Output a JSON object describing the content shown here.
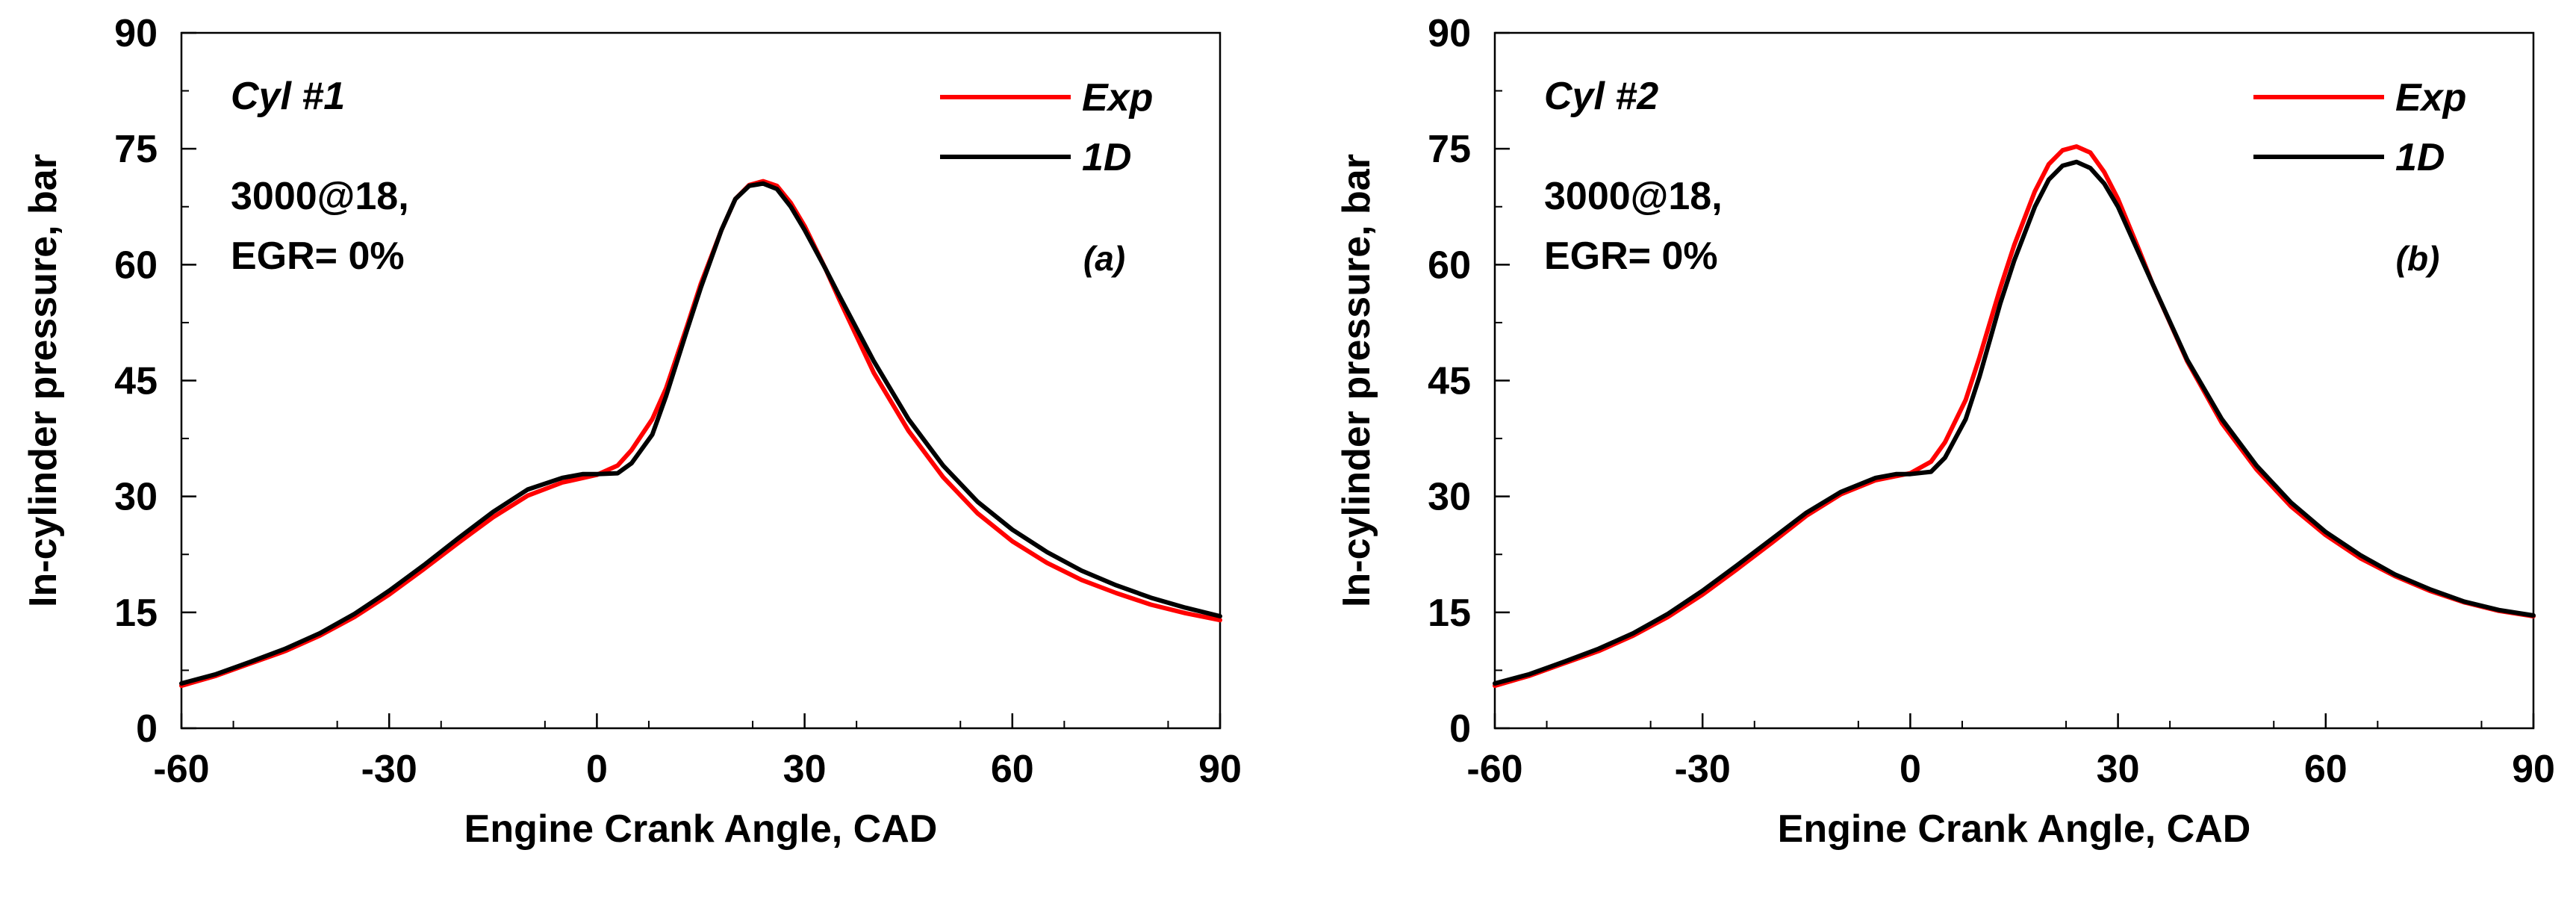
{
  "chart_data": [
    {
      "type": "line",
      "panel_tag": "(a)",
      "title": "Cyl #1",
      "annotation_lines": [
        "3000@18,",
        "EGR= 0%"
      ],
      "xlabel": "Engine Crank Angle, CAD",
      "ylabel": "In-cylinder pressure, bar",
      "xlim": [
        -60,
        90
      ],
      "ylim": [
        0,
        90
      ],
      "xticks": [
        -60,
        -30,
        0,
        30,
        60,
        90
      ],
      "yticks": [
        0,
        15,
        30,
        45,
        60,
        75,
        90
      ],
      "legend_position": "top-right",
      "series": [
        {
          "name": "Exp",
          "color": "#ff0000",
          "x": [
            -60,
            -55,
            -50,
            -45,
            -40,
            -35,
            -30,
            -25,
            -20,
            -15,
            -10,
            -5,
            0,
            3,
            5,
            8,
            10,
            13,
            15,
            18,
            20,
            22,
            24,
            26,
            28,
            30,
            33,
            35,
            40,
            45,
            50,
            55,
            60,
            65,
            70,
            75,
            80,
            85,
            90
          ],
          "y": [
            5.5,
            6.8,
            8.4,
            10.0,
            12.0,
            14.4,
            17.3,
            20.6,
            24.0,
            27.3,
            30.1,
            31.8,
            32.8,
            34.0,
            36.0,
            40.0,
            44.0,
            52.0,
            57.5,
            64.5,
            68.5,
            70.3,
            70.8,
            70.2,
            68.0,
            65.0,
            59.5,
            55.5,
            46.0,
            38.5,
            32.5,
            27.8,
            24.2,
            21.4,
            19.2,
            17.5,
            16.0,
            14.9,
            14.0
          ]
        },
        {
          "name": "1D",
          "color": "#000000",
          "x": [
            -60,
            -55,
            -50,
            -45,
            -40,
            -35,
            -30,
            -25,
            -20,
            -15,
            -10,
            -5,
            -2,
            0,
            3,
            5,
            8,
            10,
            13,
            15,
            18,
            20,
            22,
            24,
            26,
            28,
            30,
            33,
            35,
            40,
            45,
            50,
            55,
            60,
            65,
            70,
            75,
            80,
            85,
            90
          ],
          "y": [
            5.8,
            7.0,
            8.6,
            10.3,
            12.3,
            14.8,
            17.8,
            21.1,
            24.6,
            28.0,
            30.9,
            32.4,
            32.9,
            32.9,
            33.0,
            34.3,
            38.0,
            43.0,
            51.5,
            57.0,
            64.5,
            68.5,
            70.2,
            70.5,
            69.8,
            67.5,
            64.5,
            59.5,
            56.0,
            47.5,
            40.0,
            34.0,
            29.3,
            25.7,
            22.8,
            20.4,
            18.5,
            16.9,
            15.6,
            14.5
          ]
        }
      ]
    },
    {
      "type": "line",
      "panel_tag": "(b)",
      "title": "Cyl #2",
      "annotation_lines": [
        "3000@18,",
        "EGR= 0%"
      ],
      "xlabel": "Engine Crank Angle, CAD",
      "ylabel": "In-cylinder pressure, bar",
      "xlim": [
        -60,
        90
      ],
      "ylim": [
        0,
        90
      ],
      "xticks": [
        -60,
        -30,
        0,
        30,
        60,
        90
      ],
      "yticks": [
        0,
        15,
        30,
        45,
        60,
        75,
        90
      ],
      "legend_position": "top-right",
      "series": [
        {
          "name": "Exp",
          "color": "#ff0000",
          "x": [
            -60,
            -55,
            -50,
            -45,
            -40,
            -35,
            -30,
            -25,
            -20,
            -15,
            -10,
            -5,
            0,
            3,
            5,
            8,
            10,
            13,
            15,
            18,
            20,
            22,
            24,
            26,
            28,
            30,
            33,
            35,
            40,
            45,
            50,
            55,
            60,
            65,
            70,
            75,
            80,
            85,
            90
          ],
          "y": [
            5.5,
            6.8,
            8.4,
            10.0,
            12.0,
            14.4,
            17.3,
            20.6,
            24.0,
            27.5,
            30.3,
            32.1,
            33.0,
            34.5,
            37.0,
            42.5,
            48.0,
            57.0,
            62.5,
            69.5,
            73.0,
            74.8,
            75.3,
            74.5,
            72.0,
            68.5,
            62.0,
            57.5,
            47.5,
            39.5,
            33.5,
            28.7,
            25.0,
            22.0,
            19.7,
            17.8,
            16.3,
            15.2,
            14.5
          ]
        },
        {
          "name": "1D",
          "color": "#000000",
          "x": [
            -60,
            -55,
            -50,
            -45,
            -40,
            -35,
            -30,
            -25,
            -20,
            -15,
            -10,
            -5,
            -2,
            0,
            3,
            5,
            8,
            10,
            13,
            15,
            18,
            20,
            22,
            24,
            26,
            28,
            30,
            33,
            35,
            40,
            45,
            50,
            55,
            60,
            65,
            70,
            75,
            80,
            85,
            90
          ],
          "y": [
            5.8,
            7.0,
            8.6,
            10.3,
            12.3,
            14.8,
            17.8,
            21.1,
            24.5,
            27.9,
            30.6,
            32.4,
            32.9,
            32.9,
            33.2,
            35.0,
            40.0,
            45.5,
            55.0,
            60.5,
            67.5,
            71.0,
            72.8,
            73.3,
            72.5,
            70.5,
            67.5,
            61.5,
            57.5,
            47.7,
            40.0,
            34.0,
            29.2,
            25.4,
            22.4,
            19.9,
            18.0,
            16.4,
            15.3,
            14.6
          ]
        }
      ]
    }
  ]
}
